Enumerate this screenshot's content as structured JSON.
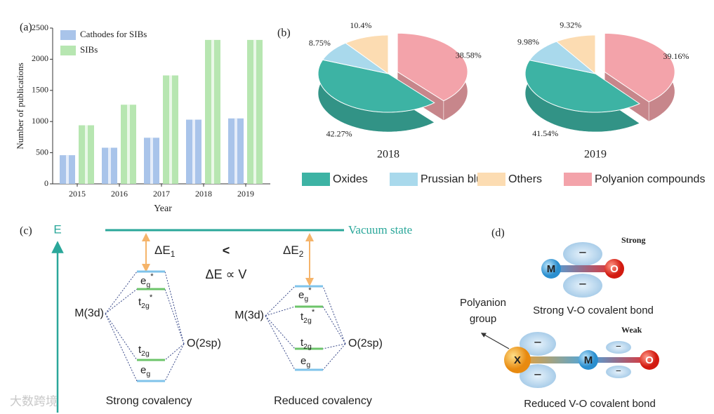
{
  "chart_data": [
    {
      "type": "bar",
      "panel": "(a)",
      "categories": [
        "2015",
        "2016",
        "2017",
        "2018",
        "2019"
      ],
      "series": [
        {
          "name": "Cathodes for SIBs",
          "color": "#a9c4ea",
          "values": [
            460,
            580,
            740,
            1030,
            1050
          ]
        },
        {
          "name": "SIBs",
          "color": "#b7e6b1",
          "values": [
            940,
            1270,
            1740,
            2310,
            2310
          ]
        }
      ],
      "ylim": [
        0,
        2500
      ],
      "yticks": [
        0,
        500,
        1000,
        1500,
        2000,
        2500
      ],
      "ylabel": "Number of publications",
      "xlabel": "Year"
    },
    {
      "type": "pie3d",
      "panel": "(b)",
      "categories": [
        "Oxides",
        "Prussian blue",
        "Others",
        "Polyanion compounds"
      ],
      "colors": [
        "#3db3a4",
        "#a9d9ec",
        "#fcdcb2",
        "#f3a3aa"
      ],
      "explode": [
        false,
        false,
        false,
        true
      ],
      "pies": [
        {
          "title": "2018",
          "values": [
            42.27,
            8.75,
            10.4,
            38.58
          ],
          "value_labels": [
            "42.27%",
            "8.75%",
            "10.4%",
            "38.58%"
          ]
        },
        {
          "title": "2019",
          "values": [
            41.54,
            9.98,
            9.32,
            39.16
          ],
          "value_labels": [
            "41.54%",
            "9.98%",
            "9.32%",
            "39.16%"
          ]
        }
      ]
    }
  ],
  "diagram_c": {
    "panel": "(c)",
    "energy": "E",
    "vacuum": "Vacuum state",
    "relation": "<",
    "proportional": "ΔE ∝ V",
    "strong": {
      "dE": [
        "ΔE",
        "1"
      ],
      "metal": "M(3d)",
      "oxygen": "O(2sp)",
      "caption": "Strong covalency",
      "levels": [
        [
          "e",
          "g",
          "*"
        ],
        [
          "t",
          "2g",
          "*"
        ],
        [
          "t",
          "2g"
        ],
        [
          "e",
          "g"
        ]
      ]
    },
    "reduced": {
      "dE": [
        "ΔE",
        "2"
      ],
      "metal": "M(3d)",
      "oxygen": "O(2sp)",
      "caption": "Reduced covalency",
      "levels": [
        [
          "e",
          "g",
          "*"
        ],
        [
          "t",
          "2g",
          "*"
        ],
        [
          "t",
          "2g"
        ],
        [
          "e",
          "g"
        ]
      ]
    }
  },
  "diagram_d": {
    "panel": "(d)",
    "strong": "Strong",
    "weak": "Weak",
    "strong_caption": "Strong V-O covalent bond",
    "reduced_caption": "Reduced V-O covalent bond",
    "group": [
      "Polyanion",
      "group"
    ],
    "metal": "M",
    "oxygen": "O",
    "anion": "X",
    "charge": "−"
  },
  "watermark": "大数跨境"
}
